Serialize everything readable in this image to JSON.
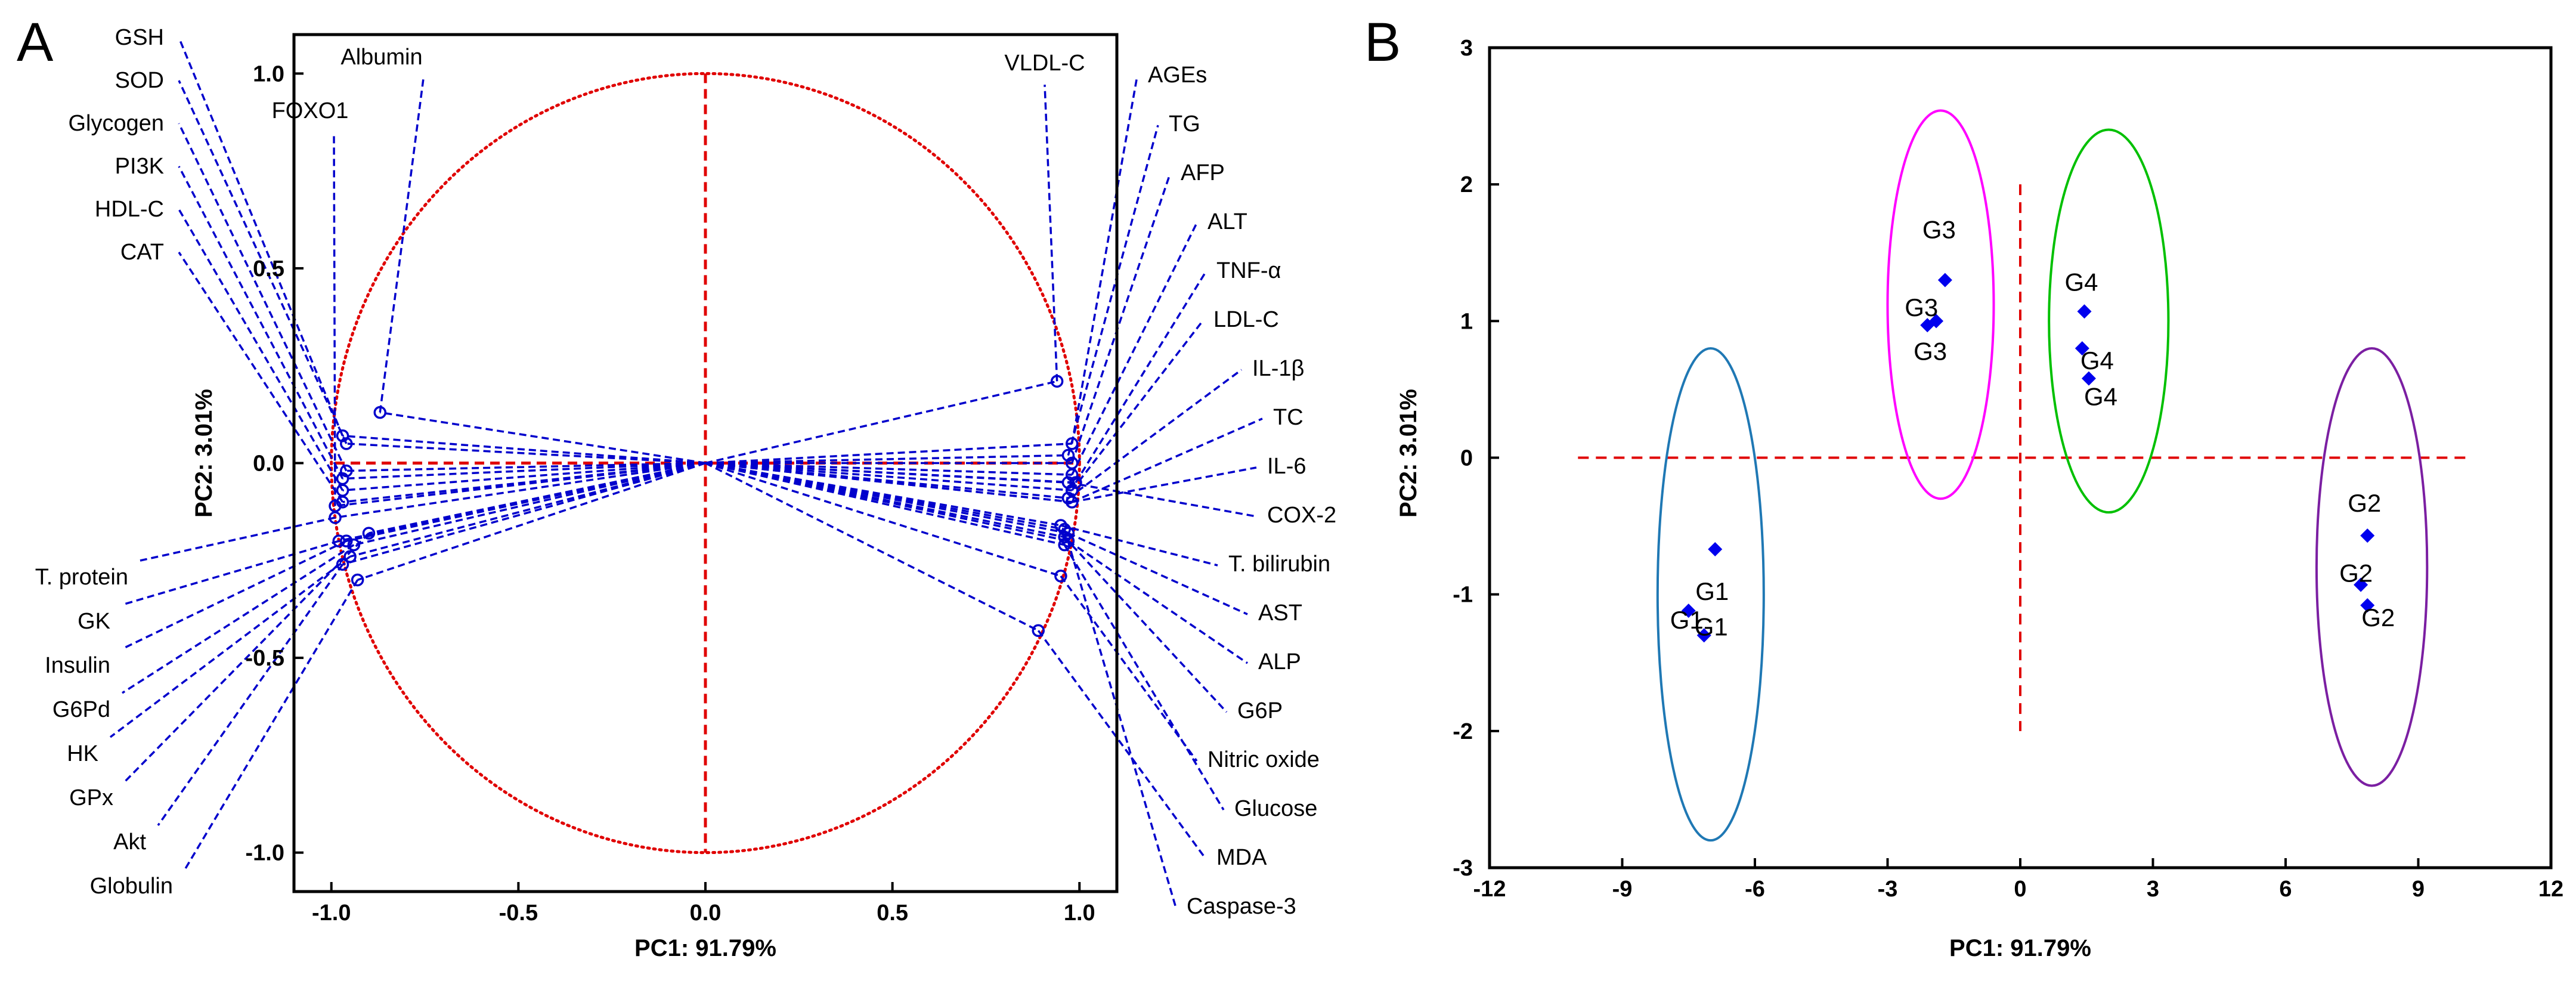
{
  "chart_data": [
    {
      "panel": "A",
      "type": "scatter",
      "subtype": "loading-plot",
      "xlabel": "PC1: 91.79%",
      "ylabel": "PC2: 3.01%",
      "xlim": [
        -1.1,
        1.1
      ],
      "ylim": [
        -1.1,
        1.1
      ],
      "xticks": [
        "-1.0",
        "-0.5",
        "0.0",
        "0.5",
        "1.0"
      ],
      "yticks": [
        "1.0",
        "0.5",
        "0.0",
        "-0.5",
        "-1.0"
      ],
      "circle_radius": 1.0,
      "loadings": [
        {
          "name": "GSH",
          "x": -0.97,
          "y": 0.07
        },
        {
          "name": "SOD",
          "x": -0.96,
          "y": 0.05
        },
        {
          "name": "Glycogen",
          "x": -0.96,
          "y": -0.02
        },
        {
          "name": "PI3K",
          "x": -0.97,
          "y": -0.04
        },
        {
          "name": "HDL-C",
          "x": -0.97,
          "y": -0.07
        },
        {
          "name": "CAT",
          "x": -0.97,
          "y": -0.1
        },
        {
          "name": "FOXO1",
          "x": -0.99,
          "y": -0.11
        },
        {
          "name": "Albumin",
          "x": -0.87,
          "y": 0.13
        },
        {
          "name": "T. protein",
          "x": -0.99,
          "y": -0.14
        },
        {
          "name": "GK",
          "x": -0.98,
          "y": -0.2
        },
        {
          "name": "Insulin",
          "x": -0.96,
          "y": -0.2
        },
        {
          "name": "G6Pd",
          "x": -0.94,
          "y": -0.21
        },
        {
          "name": "HK",
          "x": -0.95,
          "y": -0.24
        },
        {
          "name": "GPx",
          "x": -0.9,
          "y": -0.18
        },
        {
          "name": "Akt",
          "x": -0.97,
          "y": -0.26
        },
        {
          "name": "Globulin",
          "x": -0.93,
          "y": -0.3
        },
        {
          "name": "VLDL-C",
          "x": 0.94,
          "y": 0.21
        },
        {
          "name": "AGEs",
          "x": 0.98,
          "y": 0.05
        },
        {
          "name": "TG",
          "x": 0.97,
          "y": 0.02
        },
        {
          "name": "AFP",
          "x": 0.98,
          "y": 0.0
        },
        {
          "name": "ALT",
          "x": 0.98,
          "y": -0.03
        },
        {
          "name": "TNF-α",
          "x": 0.99,
          "y": -0.05
        },
        {
          "name": "LDL-C",
          "x": 0.98,
          "y": -0.07
        },
        {
          "name": "IL-1β",
          "x": 0.97,
          "y": -0.09
        },
        {
          "name": "TC",
          "x": 0.98,
          "y": -0.1
        },
        {
          "name": "IL-6",
          "x": 0.98,
          "y": -0.1
        },
        {
          "name": "COX-2",
          "x": 0.97,
          "y": -0.05
        },
        {
          "name": "T. bilirubin",
          "x": 0.95,
          "y": -0.16
        },
        {
          "name": "AST",
          "x": 0.97,
          "y": -0.18
        },
        {
          "name": "ALP",
          "x": 0.97,
          "y": -0.2
        },
        {
          "name": "G6P",
          "x": 0.96,
          "y": -0.19
        },
        {
          "name": "Nitric oxide",
          "x": 0.95,
          "y": -0.29
        },
        {
          "name": "Glucose",
          "x": 0.96,
          "y": -0.21
        },
        {
          "name": "MDA",
          "x": 0.89,
          "y": -0.43
        },
        {
          "name": "Caspase-3",
          "x": 0.96,
          "y": -0.17
        }
      ]
    },
    {
      "panel": "B",
      "type": "scatter",
      "subtype": "score-plot",
      "xlabel": "PC1: 91.79%",
      "ylabel": "PC2: 3.01%",
      "xlim": [
        -12,
        12
      ],
      "ylim": [
        -3,
        3
      ],
      "xticks": [
        "-12",
        "-9",
        "-6",
        "-3",
        "0",
        "3",
        "6",
        "9",
        "12"
      ],
      "yticks": [
        "3",
        "2",
        "1",
        "0",
        "-1",
        "-2",
        "-3"
      ],
      "groups": [
        {
          "name": "G1",
          "color": "#1f78b4",
          "ellipse": {
            "cx": -7.0,
            "cy": -1.0,
            "rx": 1.2,
            "ry": 1.8
          },
          "points": [
            {
              "x": -6.9,
              "y": -0.67
            },
            {
              "x": -7.5,
              "y": -1.12
            },
            {
              "x": -7.15,
              "y": -1.3
            }
          ],
          "labels": [
            "G1",
            "G1",
            "G1"
          ]
        },
        {
          "name": "G2",
          "color": "#7b1fa2",
          "ellipse": {
            "cx": 7.95,
            "cy": -0.8,
            "rx": 1.25,
            "ry": 1.6
          },
          "points": [
            {
              "x": 7.85,
              "y": -0.57
            },
            {
              "x": 7.7,
              "y": -0.93
            },
            {
              "x": 7.85,
              "y": -1.08
            }
          ],
          "labels": [
            "G2",
            "G2",
            "G2"
          ]
        },
        {
          "name": "G3",
          "color": "#ff00ff",
          "ellipse": {
            "cx": -1.8,
            "cy": 1.12,
            "rx": 1.2,
            "ry": 1.42
          },
          "points": [
            {
              "x": -1.7,
              "y": 1.3
            },
            {
              "x": -2.1,
              "y": 0.97
            },
            {
              "x": -1.9,
              "y": 1.0
            }
          ],
          "labels": [
            "G3",
            "G3",
            "G3"
          ]
        },
        {
          "name": "G4",
          "color": "#00c000",
          "ellipse": {
            "cx": 2.0,
            "cy": 1.0,
            "rx": 1.35,
            "ry": 1.4
          },
          "points": [
            {
              "x": 1.45,
              "y": 1.07
            },
            {
              "x": 1.4,
              "y": 0.8
            },
            {
              "x": 1.55,
              "y": 0.58
            }
          ],
          "labels": [
            "G4",
            "G4",
            "G4"
          ]
        }
      ]
    }
  ],
  "panels": {
    "A": {
      "letter": "A"
    },
    "B": {
      "letter": "B"
    }
  },
  "colors": {
    "loading": "#0000cc",
    "circle": "#e00000",
    "axis_line": "#e00000",
    "point": "#0000ee"
  }
}
